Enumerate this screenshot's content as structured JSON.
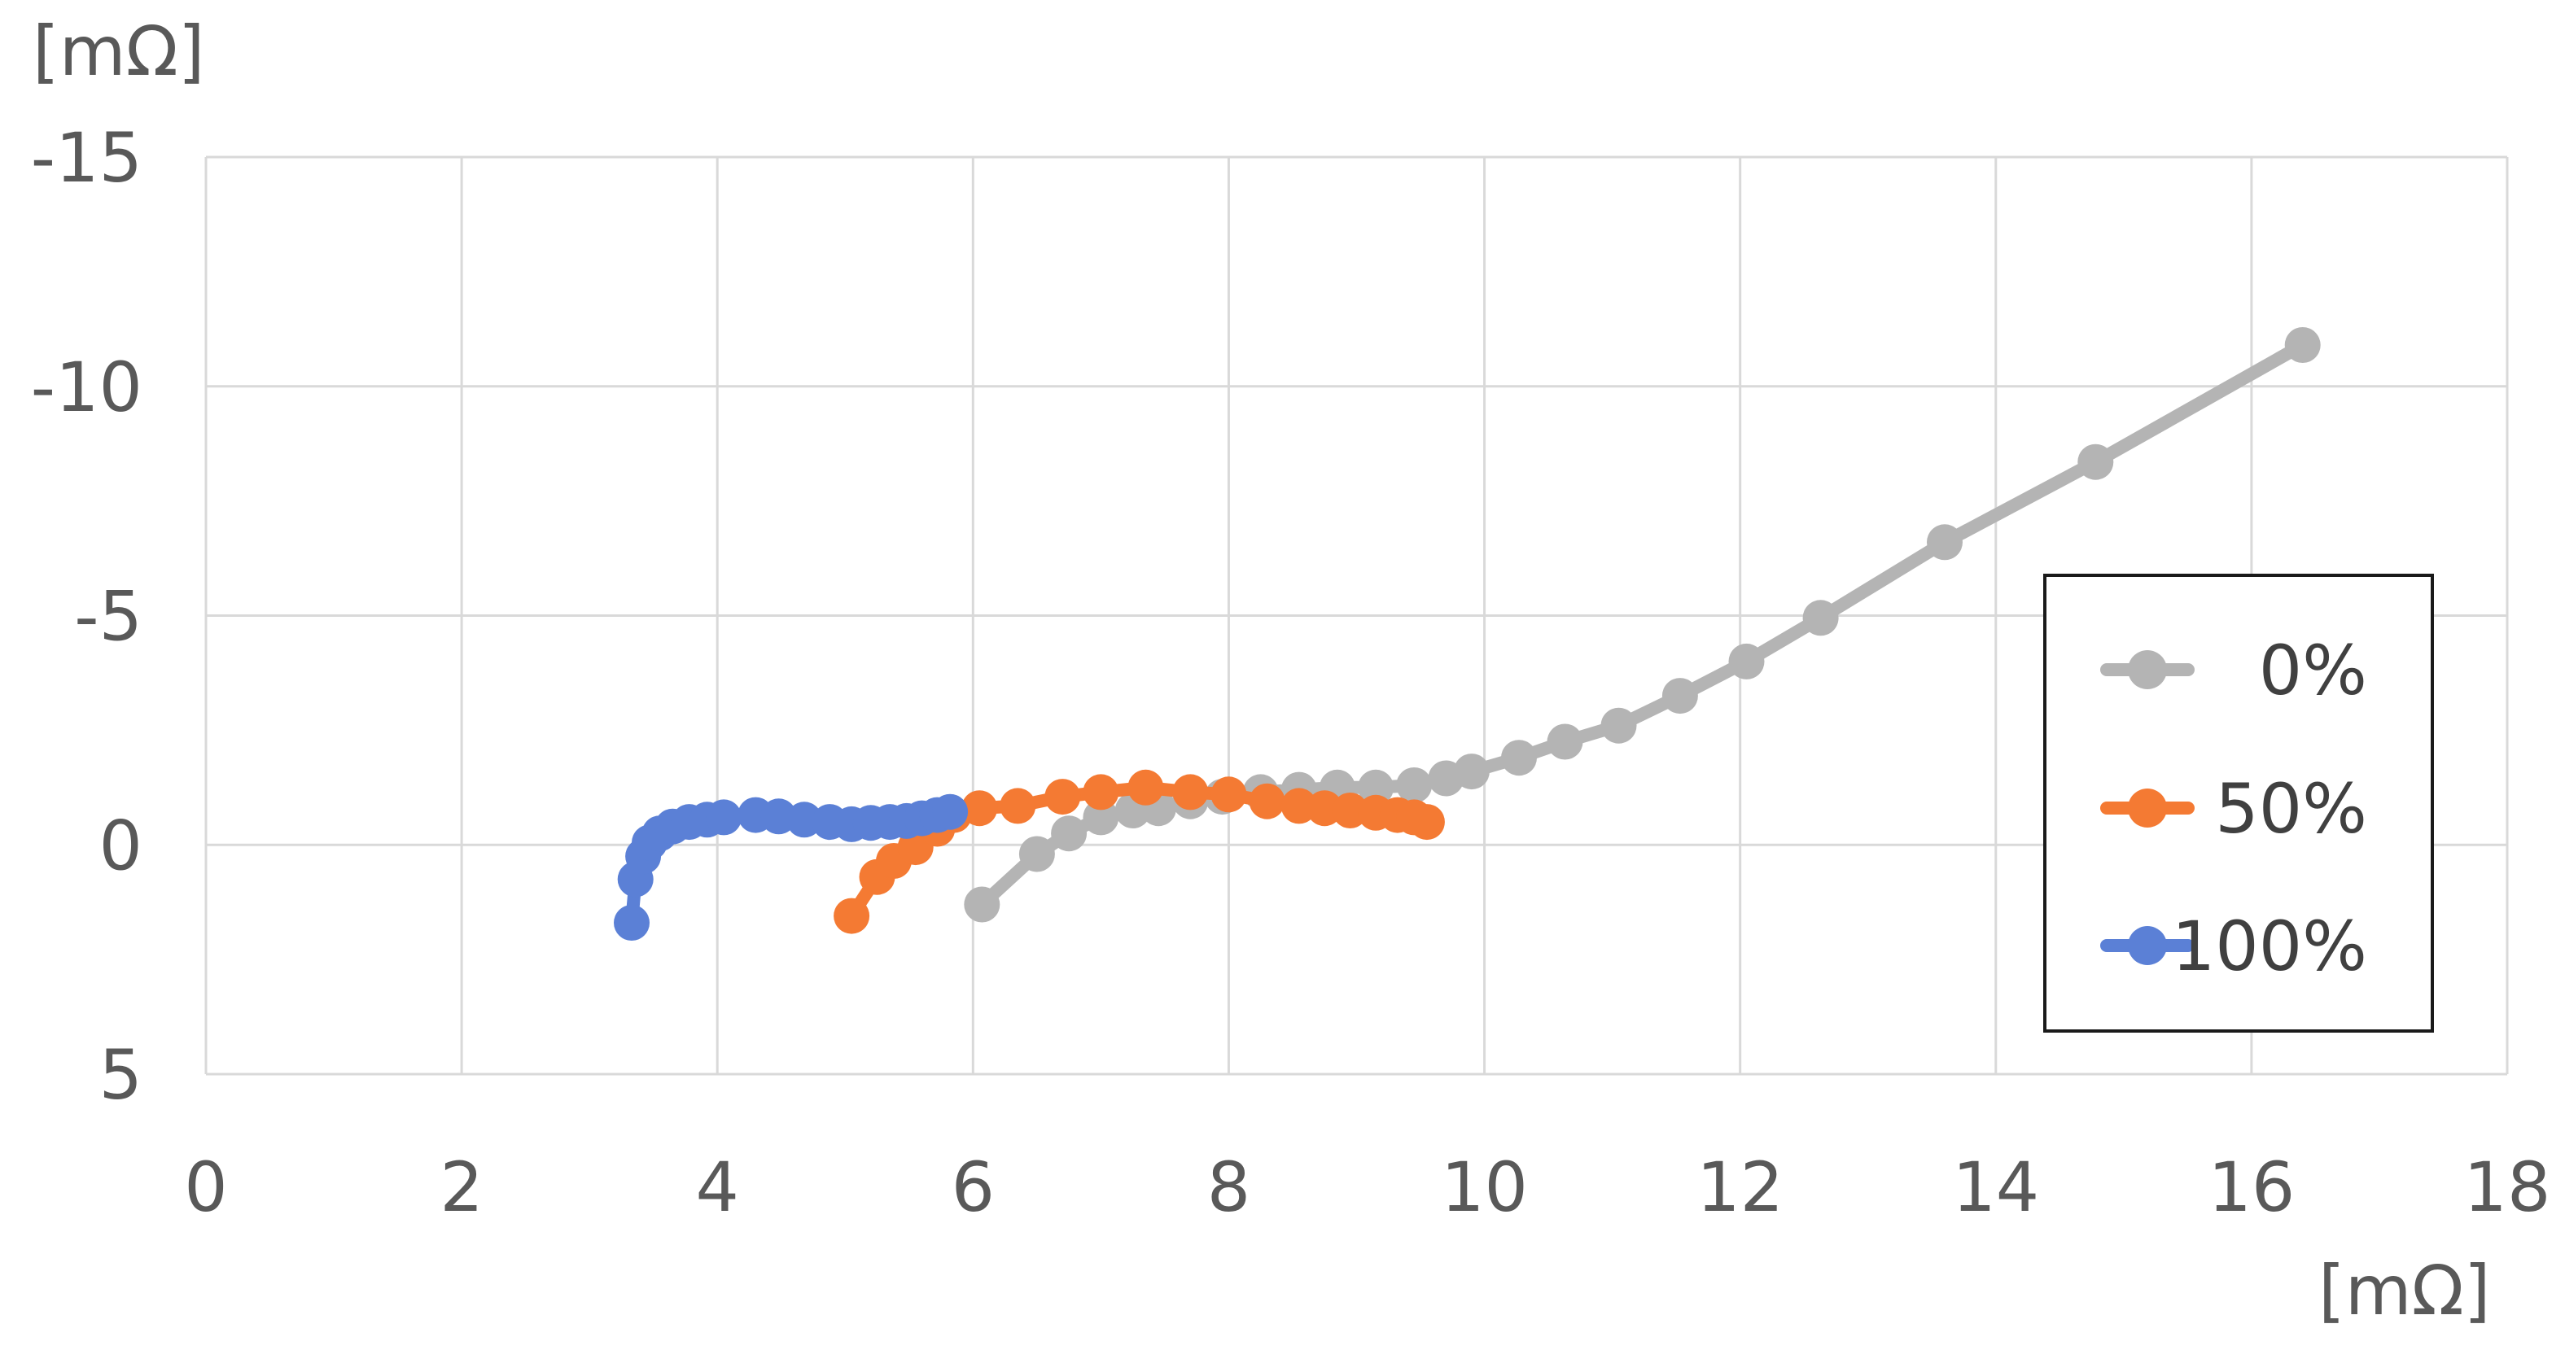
{
  "chart_data": {
    "type": "scatter",
    "title": "",
    "xlabel": "[mΩ]",
    "ylabel": "[mΩ]",
    "xlim": [
      0,
      18
    ],
    "ylim": [
      5,
      -15
    ],
    "y_axis_inverted": true,
    "grid": true,
    "legend_position": "right",
    "x_ticks": [
      "0",
      "2",
      "4",
      "6",
      "8",
      "10",
      "12",
      "14",
      "16",
      "18"
    ],
    "y_ticks": [
      "-15",
      "-10",
      "-5",
      "0",
      "5"
    ],
    "series": [
      {
        "name": "0%",
        "color": "#b4b4b4",
        "points": [
          [
            6.07,
            1.3
          ],
          [
            6.5,
            0.2
          ],
          [
            6.75,
            -0.25
          ],
          [
            7.0,
            -0.6
          ],
          [
            7.25,
            -0.75
          ],
          [
            7.45,
            -0.8
          ],
          [
            7.7,
            -0.95
          ],
          [
            7.95,
            -1.05
          ],
          [
            8.25,
            -1.15
          ],
          [
            8.55,
            -1.2
          ],
          [
            8.85,
            -1.25
          ],
          [
            9.15,
            -1.25
          ],
          [
            9.45,
            -1.3
          ],
          [
            9.7,
            -1.45
          ],
          [
            9.9,
            -1.6
          ],
          [
            10.27,
            -1.9
          ],
          [
            10.63,
            -2.25
          ],
          [
            11.05,
            -2.6
          ],
          [
            11.53,
            -3.25
          ],
          [
            12.05,
            -4.0
          ],
          [
            12.63,
            -4.95
          ],
          [
            13.6,
            -6.6
          ],
          [
            14.78,
            -8.35
          ],
          [
            16.4,
            -10.9
          ]
        ]
      },
      {
        "name": "50%",
        "color": "#f47a33",
        "points": [
          [
            5.05,
            1.55
          ],
          [
            5.25,
            0.7
          ],
          [
            5.38,
            0.35
          ],
          [
            5.55,
            0.05
          ],
          [
            5.72,
            -0.35
          ],
          [
            5.85,
            -0.65
          ],
          [
            6.05,
            -0.8
          ],
          [
            6.35,
            -0.85
          ],
          [
            6.7,
            -1.05
          ],
          [
            7.0,
            -1.15
          ],
          [
            7.35,
            -1.25
          ],
          [
            7.7,
            -1.15
          ],
          [
            8.0,
            -1.1
          ],
          [
            8.3,
            -0.95
          ],
          [
            8.55,
            -0.85
          ],
          [
            8.75,
            -0.8
          ],
          [
            8.95,
            -0.75
          ],
          [
            9.15,
            -0.7
          ],
          [
            9.32,
            -0.65
          ],
          [
            9.45,
            -0.6
          ],
          [
            9.55,
            -0.5
          ]
        ]
      },
      {
        "name": "100%",
        "color": "#5b80d6",
        "points": [
          [
            3.33,
            1.7
          ],
          [
            3.36,
            0.75
          ],
          [
            3.42,
            0.25
          ],
          [
            3.47,
            -0.05
          ],
          [
            3.55,
            -0.25
          ],
          [
            3.65,
            -0.4
          ],
          [
            3.78,
            -0.5
          ],
          [
            3.92,
            -0.55
          ],
          [
            4.05,
            -0.6
          ],
          [
            4.3,
            -0.65
          ],
          [
            4.48,
            -0.62
          ],
          [
            4.68,
            -0.55
          ],
          [
            4.88,
            -0.5
          ],
          [
            5.05,
            -0.45
          ],
          [
            5.2,
            -0.48
          ],
          [
            5.35,
            -0.5
          ],
          [
            5.48,
            -0.52
          ],
          [
            5.6,
            -0.58
          ],
          [
            5.72,
            -0.65
          ],
          [
            5.82,
            -0.72
          ]
        ]
      }
    ]
  }
}
